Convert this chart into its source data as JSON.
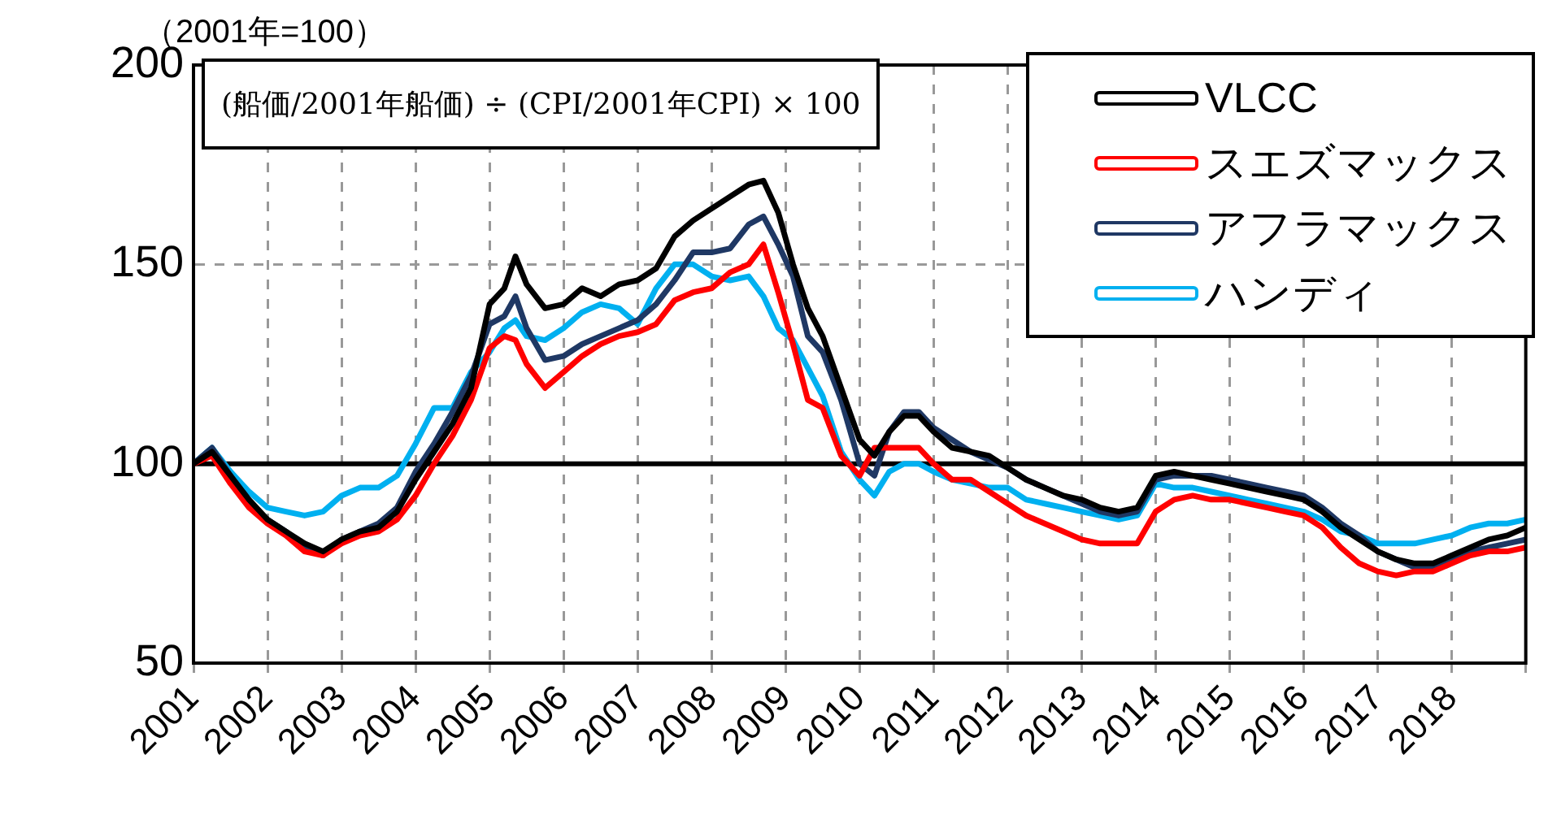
{
  "chart_data": {
    "type": "line",
    "ylabel": "（2001年=100）",
    "annotations": [
      "(船価/2001年船価) ÷ (CPI/2001年CPI) × 100"
    ],
    "x": [
      2001,
      2001.25,
      2001.5,
      2001.75,
      2002,
      2002.25,
      2002.5,
      2002.75,
      2003,
      2003.25,
      2003.5,
      2003.75,
      2004,
      2004.25,
      2004.5,
      2004.75,
      2005,
      2005.2,
      2005.35,
      2005.5,
      2005.75,
      2006,
      2006.25,
      2006.5,
      2006.75,
      2007,
      2007.25,
      2007.5,
      2007.75,
      2008,
      2008.25,
      2008.5,
      2008.7,
      2008.9,
      2009.1,
      2009.3,
      2009.5,
      2009.75,
      2010,
      2010.2,
      2010.4,
      2010.6,
      2010.8,
      2011,
      2011.25,
      2011.5,
      2011.75,
      2012,
      2012.25,
      2012.5,
      2012.75,
      2013,
      2013.25,
      2013.5,
      2013.75,
      2014,
      2014.25,
      2014.5,
      2014.75,
      2015,
      2015.25,
      2015.5,
      2015.75,
      2016,
      2016.25,
      2016.5,
      2016.75,
      2017,
      2017.25,
      2017.5,
      2017.75,
      2018,
      2018.25,
      2018.5,
      2018.75,
      2019
    ],
    "series": [
      {
        "name": "VLCC",
        "color": "#000000",
        "values": [
          100,
          103,
          97,
          91,
          86,
          83,
          80,
          78,
          81,
          83,
          84,
          88,
          96,
          103,
          110,
          119,
          140,
          144,
          152,
          145,
          139,
          140,
          144,
          142,
          145,
          146,
          149,
          157,
          161,
          164,
          167,
          170,
          171,
          163,
          150,
          139,
          132,
          119,
          106,
          102,
          108,
          112,
          112,
          108,
          104,
          103,
          102,
          99,
          96,
          94,
          92,
          91,
          89,
          88,
          89,
          97,
          98,
          97,
          96,
          95,
          94,
          93,
          92,
          91,
          88,
          84,
          81,
          78,
          76,
          75,
          75,
          77,
          79,
          81,
          82,
          84
        ]
      },
      {
        "name": "スエズマックス",
        "color": "#ff0000",
        "values": [
          100,
          102,
          95,
          89,
          85,
          82,
          78,
          77,
          80,
          82,
          83,
          86,
          92,
          100,
          107,
          116,
          129,
          132,
          131,
          125,
          119,
          123,
          127,
          130,
          132,
          133,
          135,
          141,
          143,
          144,
          148,
          150,
          155,
          143,
          130,
          116,
          114,
          102,
          97,
          104,
          104,
          104,
          104,
          100,
          96,
          96,
          93,
          90,
          87,
          85,
          83,
          81,
          80,
          80,
          80,
          88,
          91,
          92,
          91,
          91,
          90,
          89,
          88,
          87,
          84,
          79,
          75,
          73,
          72,
          73,
          73,
          75,
          77,
          78,
          78,
          79
        ]
      },
      {
        "name": "アフラマックス",
        "color": "#1f3864",
        "values": [
          100,
          104,
          97,
          90,
          86,
          83,
          79,
          77,
          81,
          83,
          85,
          89,
          98,
          105,
          113,
          122,
          135,
          137,
          142,
          134,
          126,
          127,
          130,
          132,
          134,
          136,
          140,
          146,
          153,
          153,
          154,
          160,
          162,
          155,
          147,
          132,
          128,
          116,
          100,
          97,
          108,
          113,
          113,
          109,
          106,
          103,
          101,
          99,
          96,
          94,
          92,
          90,
          88,
          87,
          88,
          96,
          97,
          97,
          97,
          96,
          95,
          94,
          93,
          92,
          89,
          85,
          82,
          78,
          76,
          74,
          74,
          76,
          78,
          79,
          80,
          81
        ]
      },
      {
        "name": "ハンディ",
        "color": "#00b0f0",
        "values": [
          100,
          104,
          98,
          93,
          89,
          88,
          87,
          88,
          92,
          94,
          94,
          97,
          105,
          114,
          114,
          123,
          128,
          134,
          136,
          132,
          131,
          134,
          138,
          140,
          139,
          135,
          144,
          150,
          150,
          147,
          146,
          147,
          142,
          134,
          131,
          124,
          117,
          103,
          96,
          92,
          98,
          100,
          100,
          98,
          96,
          95,
          94,
          94,
          91,
          90,
          89,
          88,
          87,
          86,
          87,
          95,
          94,
          94,
          93,
          92,
          91,
          90,
          89,
          88,
          86,
          83,
          82,
          80,
          80,
          80,
          81,
          82,
          84,
          85,
          85,
          86
        ]
      }
    ],
    "xlim": [
      2001,
      2019
    ],
    "xticks": [
      2001,
      2002,
      2003,
      2004,
      2005,
      2006,
      2007,
      2008,
      2009,
      2010,
      2011,
      2012,
      2013,
      2014,
      2015,
      2016,
      2017,
      2018,
      {
        "value": 2019,
        "label": null
      }
    ],
    "ylim": [
      50,
      200
    ],
    "yticks": [
      50,
      100,
      150,
      200
    ],
    "ref_lines": [
      {
        "axis": "y",
        "value": 100,
        "color": "#000000"
      }
    ],
    "grid": true,
    "legend": "top right",
    "marker": "none",
    "line_style": "solid"
  }
}
